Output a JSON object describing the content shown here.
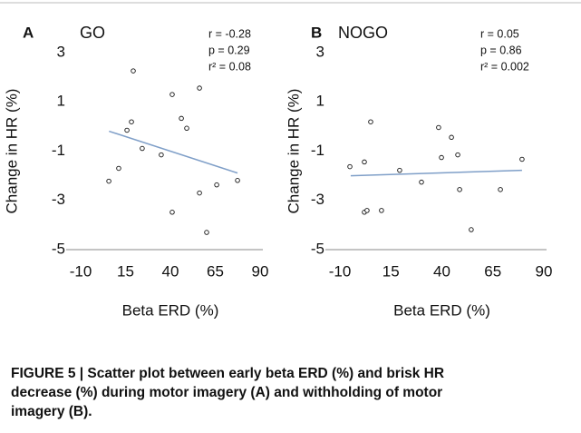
{
  "chart_data": [
    {
      "type": "scatter",
      "panel_label": "A",
      "title": "GO",
      "stats": [
        "r = -0.28",
        "p = 0.29",
        "r² = 0.08"
      ],
      "x_label": "Beta ERD (%)",
      "y_label": "Change in HR (%)",
      "x": [
        5.7,
        11.2,
        15.8,
        18.3,
        19.3,
        24.3,
        34.9,
        41,
        41,
        46.1,
        49.1,
        56.2,
        56.2,
        60.2,
        65.8,
        77.4
      ],
      "y": [
        -2.22,
        -1.7,
        -0.15,
        0.19,
        2.26,
        -0.89,
        -1.15,
        1.3,
        -3.48,
        0.33,
        -0.07,
        1.56,
        -2.7,
        -4.3,
        -2.37,
        -2.19
      ],
      "xlim": [
        -10,
        90
      ],
      "ylim": [
        -5,
        3
      ],
      "xticks": [
        -10,
        15,
        40,
        65,
        90
      ],
      "yticks": [
        -5,
        -3,
        -1,
        1,
        3
      ],
      "trendline": {
        "x": [
          5.8,
          77.4
        ],
        "y": [
          -0.19,
          -1.89
        ],
        "color": "#7f9fc8"
      }
    },
    {
      "type": "scatter",
      "panel_label": "B",
      "title": "NOGO",
      "stats": [
        "r = 0.05",
        "p = 0.86",
        "r² = 0.002"
      ],
      "x_label": "Beta ERD (%)",
      "y_label": "Change in HR (%)",
      "x": [
        -5.1,
        2.0,
        2.0,
        3.3,
        5.1,
        10.4,
        19.3,
        30,
        38.4,
        39.8,
        44.7,
        47.8,
        48.7,
        54.4,
        68.7,
        79.3
      ],
      "y": [
        -1.63,
        -1.44,
        -3.48,
        -3.41,
        0.19,
        -3.41,
        -1.78,
        -2.26,
        -0.04,
        -1.26,
        -0.44,
        -1.15,
        -2.56,
        -4.19,
        -2.56,
        -1.33
      ],
      "xlim": [
        -10,
        90
      ],
      "ylim": [
        -5,
        3
      ],
      "xticks": [
        -10,
        15,
        40,
        65,
        90
      ],
      "yticks": [
        -5,
        -3,
        -1,
        1,
        3
      ],
      "trendline": {
        "x": [
          -4.7,
          79.3
        ],
        "y": [
          -2.0,
          -1.78
        ],
        "color": "#7f9fc8"
      }
    }
  ],
  "caption": [
    "FIGURE 5 | Scatter plot between early beta ERD (%) and brisk HR",
    "decrease (%) during motor imagery (A) and withholding of motor",
    "imagery (B)."
  ]
}
